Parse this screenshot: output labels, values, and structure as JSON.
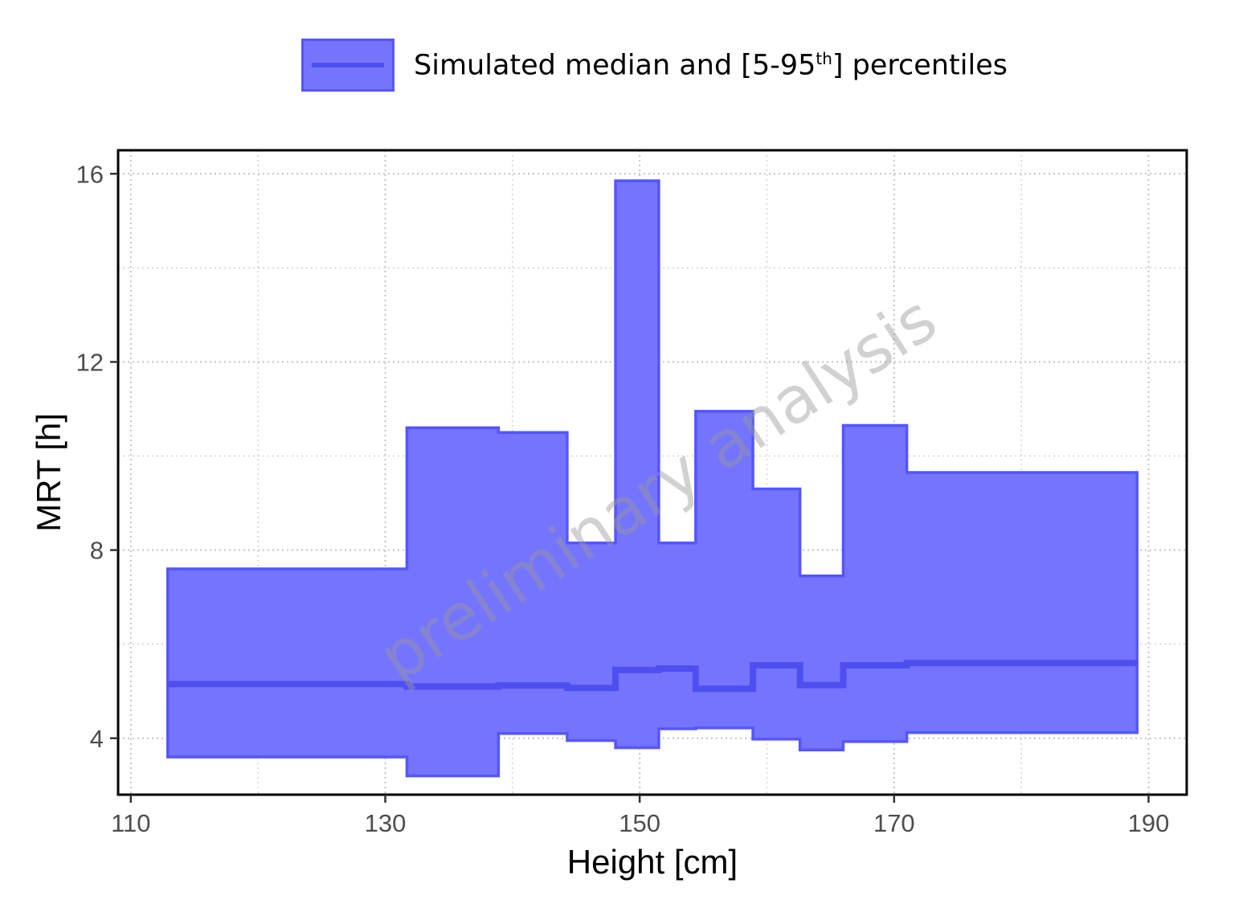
{
  "legend": {
    "label_pre": "Simulated median and [5-95",
    "label_sup": "th",
    "label_post": "] percentiles"
  },
  "watermark": "preliminary analysis",
  "colors": {
    "band_fill": "#7474ff",
    "band_stroke": "#5555ff",
    "median": "#4f4ff0"
  },
  "chart_data": {
    "type": "area",
    "xlabel": "Height [cm]",
    "ylabel": "MRT [h]",
    "xlim": [
      109,
      193
    ],
    "ylim": [
      2.8,
      16.5
    ],
    "xticks": [
      110,
      130,
      150,
      170,
      190
    ],
    "yticks": [
      4,
      8,
      12,
      16
    ],
    "grid": true,
    "legend_position": "top",
    "bins": [
      {
        "x_start": 112.9,
        "x_end": 131.7,
        "p5": 3.6,
        "median": 5.15,
        "p95": 7.6
      },
      {
        "x_start": 131.7,
        "x_end": 138.9,
        "p5": 3.2,
        "median": 5.1,
        "p95": 10.6
      },
      {
        "x_start": 138.9,
        "x_end": 144.3,
        "p5": 4.1,
        "median": 5.12,
        "p95": 10.5
      },
      {
        "x_start": 144.3,
        "x_end": 148.1,
        "p5": 3.95,
        "median": 5.07,
        "p95": 8.15
      },
      {
        "x_start": 148.1,
        "x_end": 151.5,
        "p5": 3.8,
        "median": 5.45,
        "p95": 15.85
      },
      {
        "x_start": 151.5,
        "x_end": 154.4,
        "p5": 4.2,
        "median": 5.48,
        "p95": 8.15
      },
      {
        "x_start": 154.4,
        "x_end": 158.9,
        "p5": 4.22,
        "median": 5.05,
        "p95": 10.95
      },
      {
        "x_start": 158.9,
        "x_end": 162.6,
        "p5": 3.98,
        "median": 5.55,
        "p95": 9.3
      },
      {
        "x_start": 162.6,
        "x_end": 166.0,
        "p5": 3.75,
        "median": 5.13,
        "p95": 7.45
      },
      {
        "x_start": 166.0,
        "x_end": 171.0,
        "p5": 3.93,
        "median": 5.55,
        "p95": 10.65
      },
      {
        "x_start": 171.0,
        "x_end": 189.1,
        "p5": 4.12,
        "median": 5.6,
        "p95": 9.65
      }
    ]
  }
}
